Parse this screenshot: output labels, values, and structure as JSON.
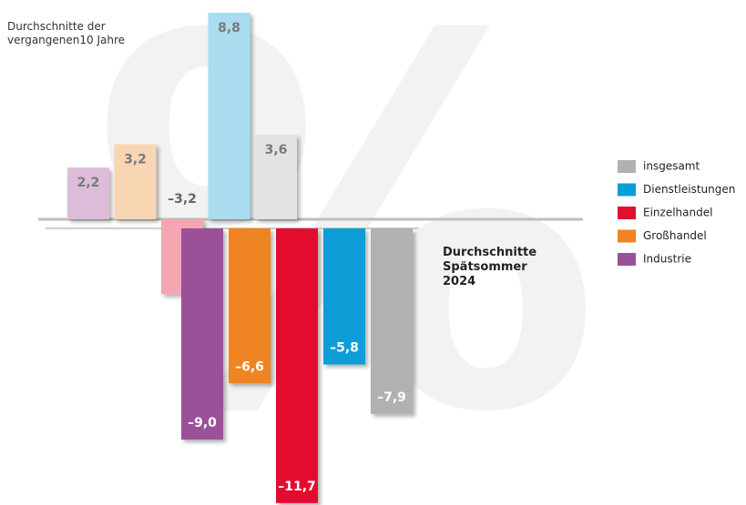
{
  "chart_data": {
    "type": "bar",
    "watermark": "%",
    "categories": [
      "Industrie",
      "Großhandel",
      "Einzelhandel",
      "Dienstleistungen",
      "insgesamt"
    ],
    "series": [
      {
        "name": "Durchschnitte der vergangenen10 Jahre",
        "color": [
          "#dcbcd8",
          "#f8d5b3",
          "#f4a7b3",
          "#aadcef",
          "#e3e3e3"
        ],
        "values": [
          2.2,
          3.2,
          -3.2,
          8.8,
          3.6
        ],
        "value_labels": [
          "2,2",
          "3,2",
          "–3,2",
          "8,8",
          "3,6"
        ]
      },
      {
        "name": "Durchschnitte Spätsommer 2024",
        "color": [
          "#9b5198",
          "#ef8420",
          "#e20f2f",
          "#0a9ed8",
          "#b1b1b1"
        ],
        "values": [
          -9.0,
          -6.6,
          -11.7,
          -5.8,
          -7.9
        ],
        "value_labels": [
          "–9,0",
          "–6,6",
          "–11,7",
          "–5,8",
          "–7,9"
        ]
      }
    ]
  }
}
